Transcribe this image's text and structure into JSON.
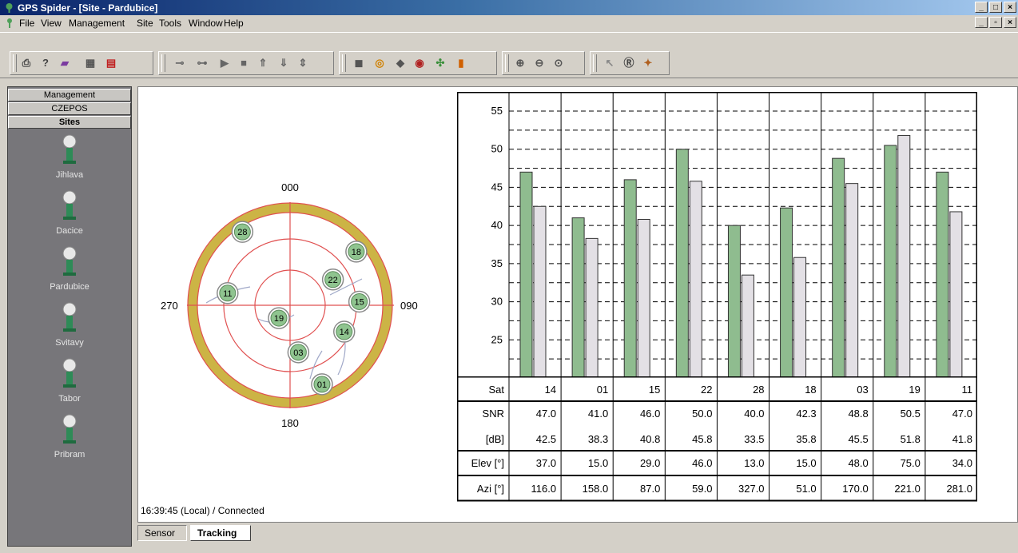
{
  "window": {
    "title": "GPS Spider - [Site - Pardubice]"
  },
  "menu": [
    "File",
    "View",
    "Management",
    "Site",
    "Tools",
    "Window",
    "Help"
  ],
  "sidebar": {
    "tabs": [
      "Management",
      "CZEPOS",
      "Sites"
    ],
    "sites": [
      "Jihlava",
      "Dacice",
      "Pardubice",
      "Svitavy",
      "Tabor",
      "Pribram"
    ]
  },
  "skyplot": {
    "labels": {
      "north": "000",
      "east": "090",
      "south": "180",
      "west": "270"
    },
    "satellites": [
      "28",
      "18",
      "22",
      "11",
      "15",
      "19",
      "14",
      "03",
      "01"
    ]
  },
  "chart_data": {
    "type": "bar",
    "categories": [
      "14",
      "01",
      "15",
      "22",
      "28",
      "18",
      "03",
      "19",
      "11"
    ],
    "series": [
      {
        "name": "",
        "color": "#8fbc8f",
        "values": [
          47.0,
          41.0,
          46.0,
          50.0,
          40.0,
          42.3,
          48.8,
          50.5,
          47.0
        ]
      },
      {
        "name": "",
        "color": "#e3e0e5",
        "values": [
          42.5,
          38.3,
          40.8,
          45.8,
          33.5,
          35.8,
          45.5,
          51.8,
          41.8
        ]
      }
    ],
    "ylim": [
      20,
      55
    ],
    "yticks": [
      "55",
      "50",
      "45",
      "40",
      "35",
      "30",
      "25"
    ],
    "grid": true
  },
  "table": {
    "rows": [
      {
        "label": "Sat",
        "values": [
          "14",
          "01",
          "15",
          "22",
          "28",
          "18",
          "03",
          "19",
          "11"
        ]
      },
      {
        "label": "SNR",
        "values": [
          "47.0",
          "41.0",
          "46.0",
          "50.0",
          "40.0",
          "42.3",
          "48.8",
          "50.5",
          "47.0"
        ]
      },
      {
        "label": "[dB]",
        "values": [
          "42.5",
          "38.3",
          "40.8",
          "45.8",
          "33.5",
          "35.8",
          "45.5",
          "51.8",
          "41.8"
        ]
      },
      {
        "label": "Elev [°]",
        "values": [
          "37.0",
          "15.0",
          "29.0",
          "46.0",
          "13.0",
          "15.0",
          "48.0",
          "75.0",
          "34.0"
        ]
      },
      {
        "label": "Azi [°]",
        "values": [
          "116.0",
          "158.0",
          "87.0",
          "59.0",
          "327.0",
          "51.0",
          "170.0",
          "221.0",
          "281.0"
        ]
      }
    ]
  },
  "status": {
    "text": "16:39:45 (Local) / Connected"
  },
  "bottom_tabs": [
    "Sensor",
    "Tracking"
  ]
}
